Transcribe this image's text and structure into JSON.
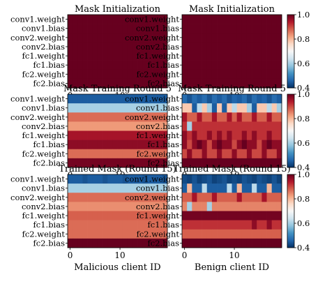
{
  "chart_data": {
    "type": "heatmap",
    "colormap": "RdBu_r",
    "color_range": [
      0.4,
      1.0
    ],
    "colorbar_ticks": [
      0.4,
      0.6,
      0.8,
      1.0
    ],
    "rows": [
      "conv1.weight",
      "conv1.bias",
      "conv2.weight",
      "conv2.bias",
      "fc1.weight",
      "fc1.bias",
      "fc2.weight",
      "fc2.bias"
    ],
    "x_ticks": [
      0,
      10
    ],
    "num_clients": 20,
    "panels": [
      {
        "title": "Mask Initialization",
        "xlabel": "",
        "values": [
          [
            1.0,
            1.0,
            1.0,
            1.0,
            1.0,
            1.0,
            1.0,
            1.0,
            1.0,
            1.0,
            1.0,
            1.0,
            1.0,
            1.0,
            1.0,
            1.0,
            1.0,
            1.0,
            1.0,
            1.0
          ],
          [
            1.0,
            1.0,
            1.0,
            1.0,
            1.0,
            1.0,
            1.0,
            1.0,
            1.0,
            1.0,
            1.0,
            1.0,
            1.0,
            1.0,
            1.0,
            1.0,
            1.0,
            1.0,
            1.0,
            1.0
          ],
          [
            1.0,
            1.0,
            1.0,
            1.0,
            1.0,
            1.0,
            1.0,
            1.0,
            1.0,
            1.0,
            1.0,
            1.0,
            1.0,
            1.0,
            1.0,
            1.0,
            1.0,
            1.0,
            1.0,
            1.0
          ],
          [
            1.0,
            1.0,
            1.0,
            1.0,
            1.0,
            1.0,
            1.0,
            1.0,
            1.0,
            1.0,
            1.0,
            1.0,
            1.0,
            1.0,
            1.0,
            1.0,
            1.0,
            1.0,
            1.0,
            1.0
          ],
          [
            1.0,
            1.0,
            1.0,
            1.0,
            1.0,
            1.0,
            1.0,
            1.0,
            1.0,
            1.0,
            1.0,
            1.0,
            1.0,
            1.0,
            1.0,
            1.0,
            1.0,
            1.0,
            1.0,
            1.0
          ],
          [
            1.0,
            1.0,
            1.0,
            1.0,
            1.0,
            1.0,
            1.0,
            1.0,
            1.0,
            1.0,
            1.0,
            1.0,
            1.0,
            1.0,
            1.0,
            1.0,
            1.0,
            1.0,
            1.0,
            1.0
          ],
          [
            1.0,
            1.0,
            1.0,
            1.0,
            1.0,
            1.0,
            1.0,
            1.0,
            1.0,
            1.0,
            1.0,
            1.0,
            1.0,
            1.0,
            1.0,
            1.0,
            1.0,
            1.0,
            1.0,
            1.0
          ],
          [
            1.0,
            1.0,
            1.0,
            1.0,
            1.0,
            1.0,
            1.0,
            1.0,
            1.0,
            1.0,
            1.0,
            1.0,
            1.0,
            1.0,
            1.0,
            1.0,
            1.0,
            1.0,
            1.0,
            1.0
          ]
        ]
      },
      {
        "title": "Mask Initialization",
        "xlabel": "",
        "values": [
          [
            1.0,
            1.0,
            1.0,
            1.0,
            1.0,
            1.0,
            1.0,
            1.0,
            1.0,
            1.0,
            1.0,
            1.0,
            1.0,
            1.0,
            1.0,
            1.0,
            1.0,
            1.0,
            1.0,
            1.0
          ],
          [
            1.0,
            1.0,
            1.0,
            1.0,
            1.0,
            1.0,
            1.0,
            1.0,
            1.0,
            1.0,
            1.0,
            1.0,
            1.0,
            1.0,
            1.0,
            1.0,
            1.0,
            1.0,
            1.0,
            1.0
          ],
          [
            1.0,
            1.0,
            1.0,
            1.0,
            1.0,
            1.0,
            1.0,
            1.0,
            1.0,
            1.0,
            1.0,
            1.0,
            1.0,
            1.0,
            1.0,
            1.0,
            1.0,
            1.0,
            1.0,
            1.0
          ],
          [
            1.0,
            1.0,
            1.0,
            1.0,
            1.0,
            1.0,
            1.0,
            1.0,
            1.0,
            1.0,
            1.0,
            1.0,
            1.0,
            1.0,
            1.0,
            1.0,
            1.0,
            1.0,
            1.0,
            1.0
          ],
          [
            1.0,
            1.0,
            1.0,
            1.0,
            1.0,
            1.0,
            1.0,
            1.0,
            1.0,
            1.0,
            1.0,
            1.0,
            1.0,
            1.0,
            1.0,
            1.0,
            1.0,
            1.0,
            1.0,
            1.0
          ],
          [
            1.0,
            1.0,
            1.0,
            1.0,
            1.0,
            1.0,
            1.0,
            1.0,
            1.0,
            1.0,
            1.0,
            1.0,
            1.0,
            1.0,
            1.0,
            1.0,
            1.0,
            1.0,
            1.0,
            1.0
          ],
          [
            1.0,
            1.0,
            1.0,
            1.0,
            1.0,
            1.0,
            1.0,
            1.0,
            1.0,
            1.0,
            1.0,
            1.0,
            1.0,
            1.0,
            1.0,
            1.0,
            1.0,
            1.0,
            1.0,
            1.0
          ],
          [
            1.0,
            1.0,
            1.0,
            1.0,
            1.0,
            1.0,
            1.0,
            1.0,
            1.0,
            1.0,
            1.0,
            1.0,
            1.0,
            1.0,
            1.0,
            1.0,
            1.0,
            1.0,
            1.0,
            1.0
          ]
        ]
      },
      {
        "title": "Mask Training Round 5",
        "xlabel": "",
        "values": [
          [
            0.45,
            0.45,
            0.45,
            0.45,
            0.45,
            0.45,
            0.45,
            0.45,
            0.45,
            0.45,
            0.45,
            0.45,
            0.45,
            0.45,
            0.45,
            0.45,
            0.45,
            0.45,
            0.45,
            0.45
          ],
          [
            0.6,
            0.6,
            0.6,
            0.6,
            0.6,
            0.6,
            0.6,
            0.6,
            0.6,
            0.6,
            0.6,
            0.6,
            0.6,
            0.6,
            0.6,
            0.6,
            0.6,
            0.6,
            0.6,
            0.6
          ],
          [
            0.87,
            0.87,
            0.87,
            0.87,
            0.87,
            0.87,
            0.87,
            0.87,
            0.87,
            0.87,
            0.87,
            0.87,
            0.87,
            0.87,
            0.87,
            0.87,
            0.87,
            0.87,
            0.87,
            0.87
          ],
          [
            0.83,
            0.83,
            0.83,
            0.83,
            0.83,
            0.83,
            0.83,
            0.83,
            0.83,
            0.83,
            0.83,
            0.83,
            0.83,
            0.83,
            0.83,
            0.83,
            0.83,
            0.83,
            0.83,
            0.83
          ],
          [
            0.95,
            0.95,
            0.95,
            0.95,
            0.95,
            0.95,
            0.95,
            0.95,
            0.95,
            0.95,
            0.95,
            0.95,
            0.95,
            0.95,
            0.95,
            0.95,
            0.95,
            0.95,
            0.95,
            0.95
          ],
          [
            0.97,
            0.97,
            0.97,
            0.97,
            0.97,
            0.97,
            0.97,
            0.97,
            0.97,
            0.97,
            0.97,
            0.97,
            0.97,
            0.97,
            0.97,
            0.97,
            0.97,
            0.97,
            0.97,
            0.97
          ],
          [
            0.87,
            0.87,
            0.87,
            0.87,
            0.87,
            0.87,
            0.87,
            0.87,
            0.87,
            0.87,
            0.87,
            0.87,
            0.87,
            0.87,
            0.87,
            0.87,
            0.87,
            0.87,
            0.87,
            0.87
          ],
          [
            0.99,
            0.99,
            0.99,
            0.99,
            0.99,
            0.99,
            0.99,
            0.99,
            0.99,
            0.99,
            0.99,
            0.99,
            0.99,
            0.99,
            0.99,
            0.99,
            0.99,
            0.99,
            0.99,
            0.99
          ]
        ]
      },
      {
        "title": "Mask Training Round 5",
        "xlabel": "",
        "values": [
          [
            0.47,
            0.44,
            0.47,
            0.45,
            0.47,
            0.44,
            0.47,
            0.45,
            0.47,
            0.44,
            0.46,
            0.45,
            0.47,
            0.44,
            0.47,
            0.45,
            0.46,
            0.44,
            0.47,
            0.45
          ],
          [
            0.78,
            0.78,
            0.45,
            0.62,
            0.78,
            0.6,
            0.45,
            0.78,
            0.45,
            0.78,
            0.62,
            0.78,
            0.78,
            0.6,
            0.45,
            0.78,
            0.78,
            0.62,
            0.78,
            0.6
          ],
          [
            0.95,
            0.88,
            0.88,
            0.95,
            0.88,
            0.88,
            0.95,
            0.88,
            0.88,
            0.95,
            0.88,
            0.95,
            0.88,
            0.88,
            0.95,
            0.88,
            0.88,
            0.95,
            0.88,
            0.88
          ],
          [
            0.92,
            0.6,
            0.92,
            0.92,
            0.92,
            0.92,
            0.92,
            0.92,
            0.92,
            0.92,
            0.92,
            0.92,
            0.92,
            0.92,
            0.92,
            0.92,
            0.92,
            0.92,
            0.92,
            0.92
          ],
          [
            0.97,
            0.92,
            0.97,
            0.92,
            0.92,
            0.97,
            0.92,
            0.97,
            0.92,
            0.97,
            0.92,
            0.92,
            0.97,
            0.92,
            0.97,
            0.92,
            0.92,
            0.97,
            0.92,
            0.92
          ],
          [
            0.97,
            0.9,
            0.97,
            1.0,
            0.97,
            0.9,
            0.97,
            1.0,
            0.97,
            0.97,
            0.9,
            0.97,
            1.0,
            0.97,
            0.97,
            0.9,
            0.97,
            1.0,
            0.97,
            0.97
          ],
          [
            0.9,
            0.97,
            0.9,
            0.9,
            0.97,
            0.9,
            0.9,
            0.97,
            0.9,
            0.9,
            0.97,
            0.9,
            0.9,
            0.97,
            0.9,
            0.9,
            0.97,
            0.9,
            0.9,
            0.97
          ],
          [
            1.0,
            1.0,
            1.0,
            1.0,
            1.0,
            1.0,
            1.0,
            1.0,
            1.0,
            1.0,
            1.0,
            1.0,
            1.0,
            1.0,
            1.0,
            1.0,
            1.0,
            1.0,
            1.0,
            1.0
          ]
        ]
      },
      {
        "title": "Trained Mask (Round 15)",
        "xlabel": "Malicious client ID",
        "values": [
          [
            0.45,
            0.45,
            0.45,
            0.44,
            0.45,
            0.45,
            0.45,
            0.44,
            0.45,
            0.45,
            0.45,
            0.44,
            0.45,
            0.45,
            0.45,
            0.44,
            0.45,
            0.45,
            0.45,
            0.44
          ],
          [
            0.6,
            0.6,
            0.6,
            0.6,
            0.6,
            0.6,
            0.6,
            0.6,
            0.6,
            0.6,
            0.6,
            0.6,
            0.6,
            0.6,
            0.6,
            0.6,
            0.6,
            0.6,
            0.6,
            0.6
          ],
          [
            0.87,
            0.87,
            0.87,
            0.87,
            0.87,
            0.87,
            0.87,
            0.87,
            0.87,
            0.87,
            0.87,
            0.87,
            0.87,
            0.87,
            0.87,
            0.87,
            0.87,
            0.87,
            0.87,
            0.87
          ],
          [
            0.84,
            0.84,
            0.84,
            0.84,
            0.84,
            0.84,
            0.84,
            0.84,
            0.84,
            0.84,
            0.84,
            0.84,
            0.84,
            0.84,
            0.84,
            0.84,
            0.84,
            0.84,
            0.84,
            0.84
          ],
          [
            0.88,
            0.88,
            0.88,
            0.88,
            0.88,
            0.88,
            0.88,
            0.88,
            0.88,
            0.88,
            0.88,
            0.88,
            0.88,
            0.88,
            0.88,
            0.88,
            0.88,
            0.88,
            0.88,
            0.88
          ],
          [
            0.87,
            0.87,
            0.87,
            0.87,
            0.87,
            0.87,
            0.87,
            0.87,
            0.87,
            0.87,
            0.87,
            0.87,
            0.87,
            0.87,
            0.87,
            0.87,
            0.87,
            0.87,
            0.87,
            0.87
          ],
          [
            0.87,
            0.87,
            0.87,
            0.87,
            0.87,
            0.87,
            0.87,
            0.87,
            0.87,
            0.87,
            0.87,
            0.87,
            0.87,
            0.87,
            0.87,
            0.87,
            0.87,
            0.87,
            0.87,
            0.87
          ],
          [
            1.0,
            1.0,
            1.0,
            1.0,
            1.0,
            1.0,
            1.0,
            1.0,
            1.0,
            1.0,
            1.0,
            1.0,
            1.0,
            1.0,
            1.0,
            1.0,
            1.0,
            1.0,
            1.0,
            1.0
          ]
        ]
      },
      {
        "title": "Trained Mask (Round 15)",
        "xlabel": "Benign client ID",
        "values": [
          [
            0.43,
            0.42,
            0.44,
            0.42,
            0.43,
            0.44,
            0.42,
            0.43,
            0.44,
            0.42,
            0.43,
            0.42,
            0.44,
            0.43,
            0.42,
            0.44,
            0.43,
            0.42,
            0.44,
            0.42
          ],
          [
            0.45,
            0.8,
            0.45,
            0.45,
            0.62,
            0.45,
            0.45,
            0.45,
            0.45,
            0.62,
            0.45,
            0.8,
            0.45,
            0.45,
            0.62,
            0.45,
            0.45,
            0.8,
            0.45,
            0.45
          ],
          [
            0.88,
            0.88,
            0.95,
            0.88,
            0.88,
            0.88,
            0.95,
            0.88,
            0.88,
            0.88,
            0.88,
            0.95,
            0.88,
            0.88,
            0.88,
            0.88,
            0.95,
            0.88,
            0.88,
            0.88
          ],
          [
            0.85,
            0.6,
            0.85,
            0.85,
            0.85,
            0.6,
            0.85,
            0.85,
            0.85,
            0.85,
            0.85,
            0.85,
            0.85,
            0.85,
            0.85,
            0.85,
            0.85,
            0.85,
            0.85,
            0.85
          ],
          [
            0.99,
            0.99,
            0.99,
            0.99,
            0.99,
            0.99,
            0.99,
            0.99,
            0.99,
            0.99,
            0.99,
            0.99,
            0.99,
            0.99,
            0.99,
            0.99,
            0.99,
            0.99,
            0.99,
            0.99
          ],
          [
            0.92,
            0.92,
            0.92,
            0.92,
            0.92,
            0.92,
            0.92,
            0.92,
            0.92,
            0.92,
            0.92,
            0.92,
            0.92,
            0.92,
            0.97,
            0.92,
            0.92,
            0.97,
            0.92,
            0.92
          ],
          [
            0.88,
            0.88,
            0.88,
            0.88,
            0.88,
            0.88,
            0.88,
            0.88,
            0.88,
            0.88,
            0.88,
            0.88,
            0.88,
            0.88,
            0.88,
            0.88,
            0.88,
            0.88,
            0.88,
            0.88
          ],
          [
            1.0,
            1.0,
            1.0,
            1.0,
            1.0,
            1.0,
            1.0,
            1.0,
            1.0,
            1.0,
            1.0,
            1.0,
            1.0,
            1.0,
            1.0,
            1.0,
            1.0,
            1.0,
            1.0,
            1.0
          ]
        ]
      }
    ]
  }
}
